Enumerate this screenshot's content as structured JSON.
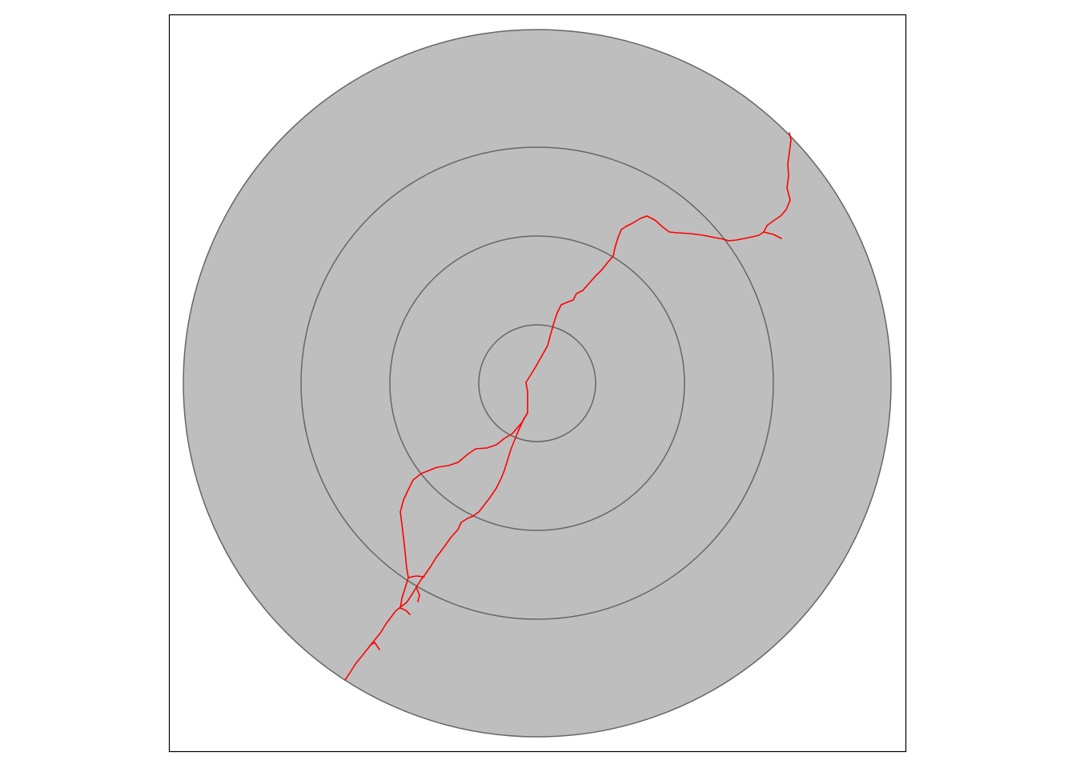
{
  "map": {
    "colors": {
      "background": "#ffffff",
      "panel_border": "#000000",
      "disc_fill": "#bebebe",
      "ring_stroke": "#666666",
      "river": "#ff0000"
    },
    "rings_count": 4,
    "features": {
      "disc": "outer-study-area",
      "rings": [
        "ring-inner",
        "ring-2",
        "ring-3",
        "ring-outer"
      ],
      "river": "river-network"
    }
  }
}
